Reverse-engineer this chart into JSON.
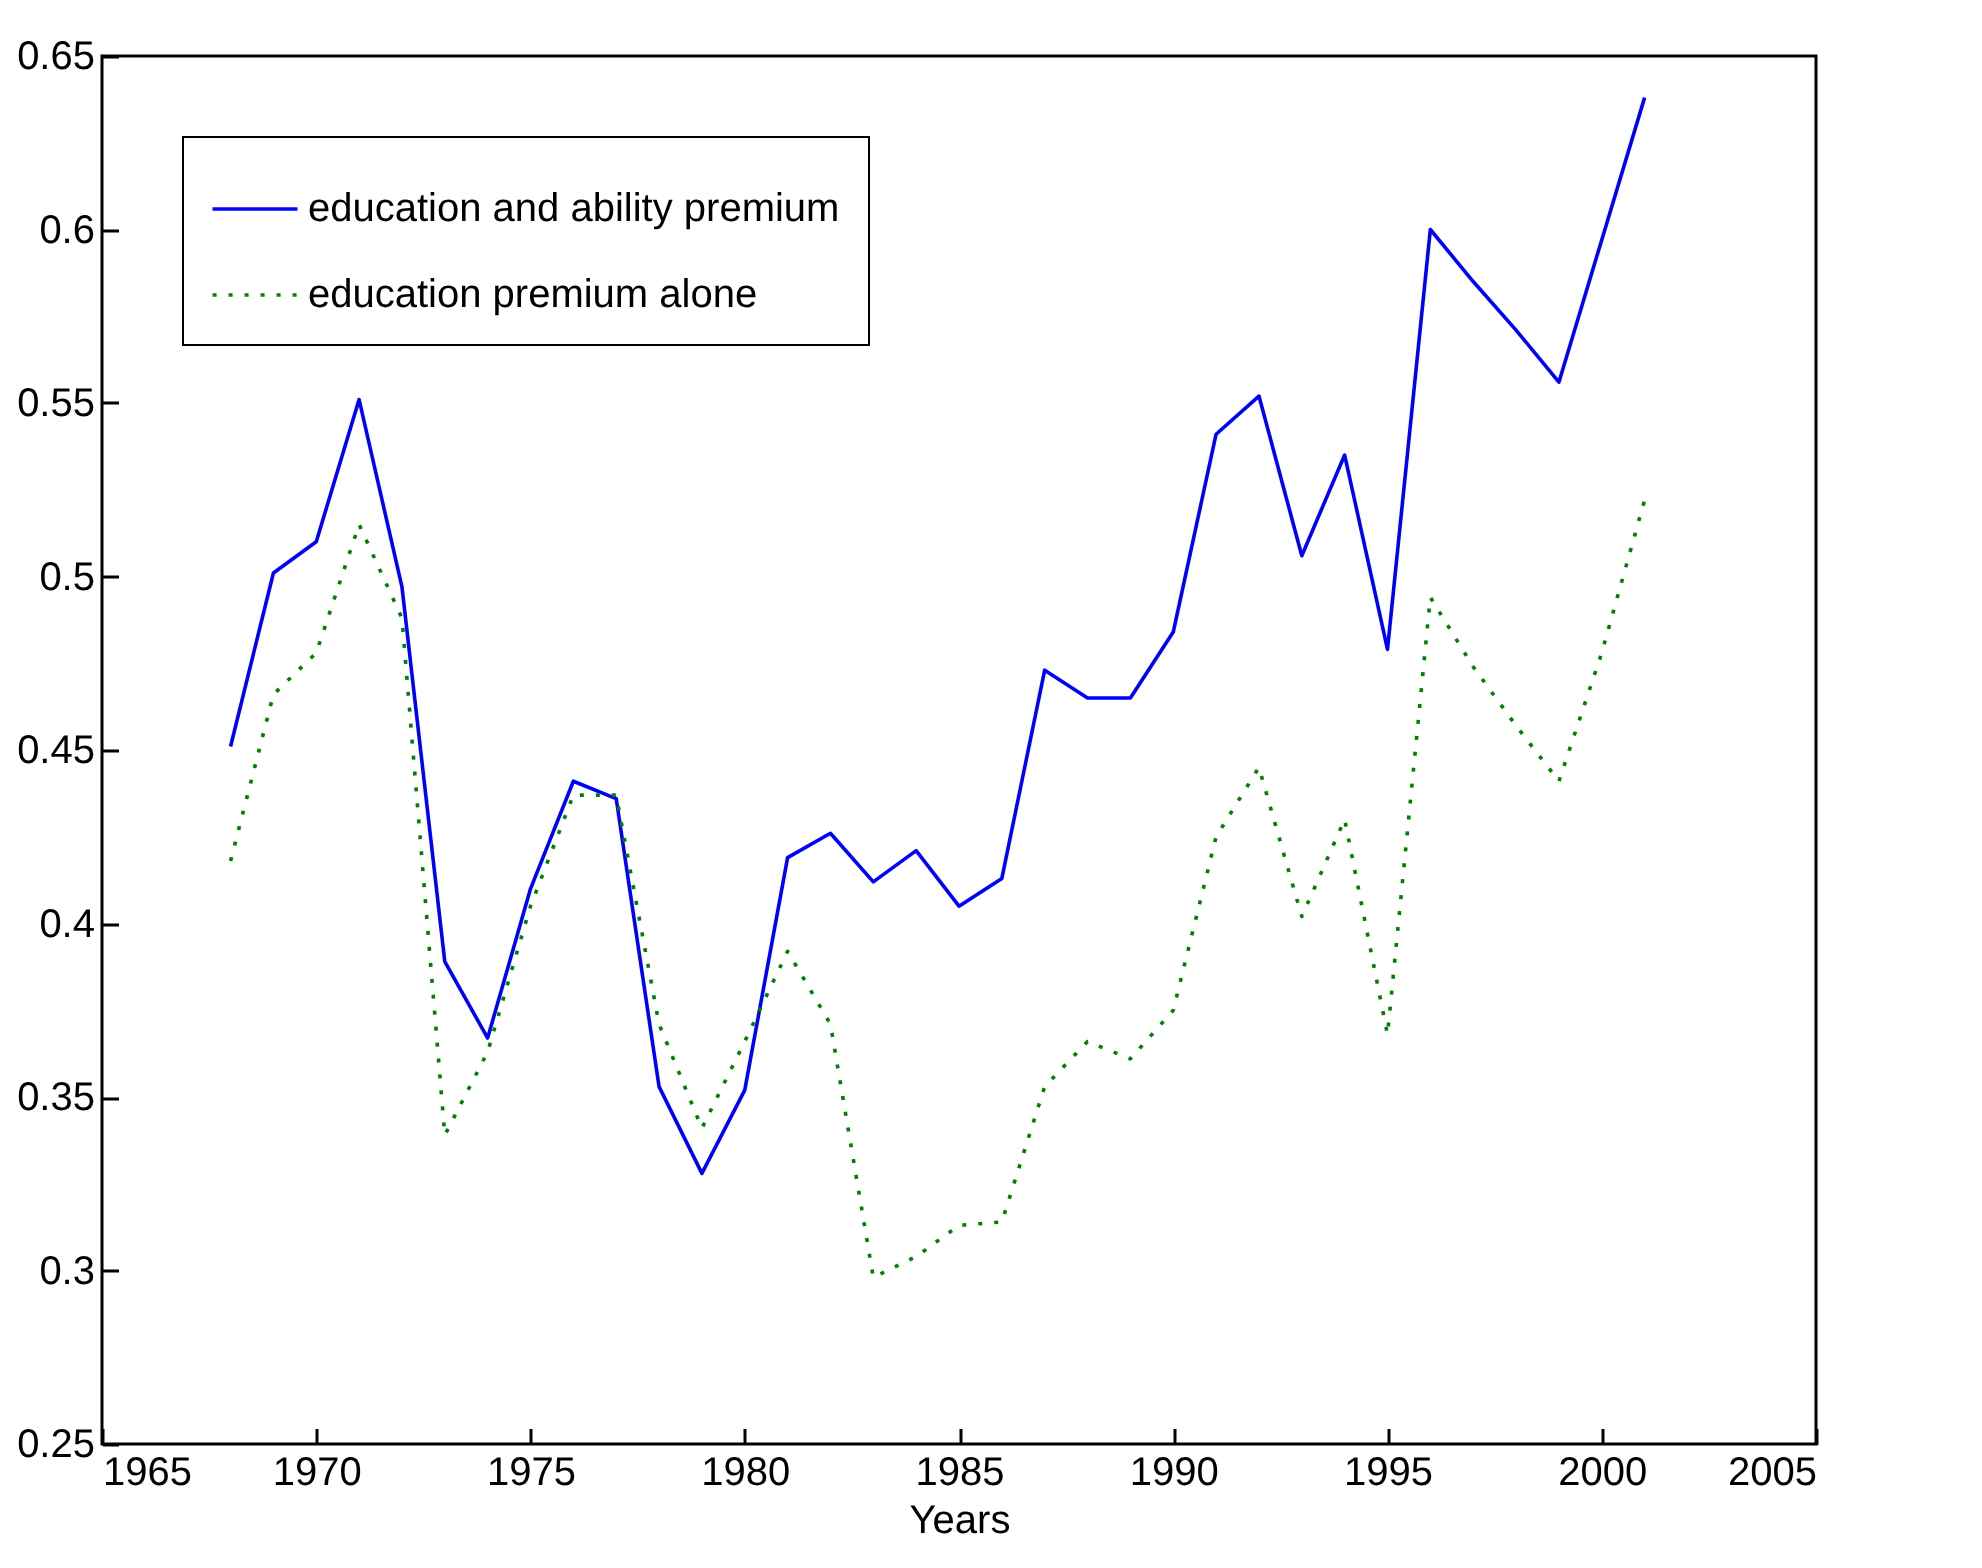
{
  "chart_data": {
    "type": "line",
    "xlabel": "Years",
    "x": [
      1968,
      1969,
      1970,
      1971,
      1972,
      1973,
      1974,
      1975,
      1976,
      1977,
      1978,
      1979,
      1980,
      1981,
      1982,
      1983,
      1984,
      1985,
      1986,
      1987,
      1988,
      1989,
      1990,
      1991,
      1992,
      1993,
      1994,
      1995,
      1996,
      1997,
      1998,
      1999,
      2000,
      2001
    ],
    "series": [
      {
        "name": "education and ability premium",
        "color": "#0000ff",
        "line_style": "solid",
        "values": [
          0.451,
          0.501,
          0.51,
          0.551,
          0.497,
          0.389,
          0.367,
          0.41,
          0.441,
          0.436,
          0.353,
          0.328,
          0.352,
          0.419,
          0.426,
          0.412,
          0.421,
          0.405,
          0.413,
          0.473,
          0.465,
          0.465,
          0.484,
          0.541,
          0.552,
          0.506,
          0.535,
          0.479,
          0.6,
          0.585,
          0.571,
          0.556,
          0.597,
          0.638
        ]
      },
      {
        "name": "education premium alone",
        "color": "#008000",
        "line_style": "dotted",
        "values": [
          0.418,
          0.466,
          0.478,
          0.515,
          0.488,
          0.339,
          0.363,
          0.405,
          0.437,
          0.437,
          0.371,
          0.341,
          0.366,
          0.392,
          0.371,
          0.298,
          0.304,
          0.313,
          0.314,
          0.353,
          0.366,
          0.361,
          0.375,
          0.425,
          0.445,
          0.402,
          0.43,
          0.368,
          0.494,
          0.474,
          0.457,
          0.441,
          0.478,
          0.522
        ]
      }
    ],
    "xlim": [
      1965,
      2005
    ],
    "xticks": [
      1965,
      1970,
      1975,
      1980,
      1985,
      1990,
      1995,
      2000,
      2005
    ],
    "ylim": [
      0.25,
      0.65
    ],
    "yticks": [
      0.25,
      0.3,
      0.35,
      0.4,
      0.45,
      0.5,
      0.55,
      0.6,
      0.65
    ],
    "grid": false,
    "legend": "top left",
    "marker": "none"
  }
}
